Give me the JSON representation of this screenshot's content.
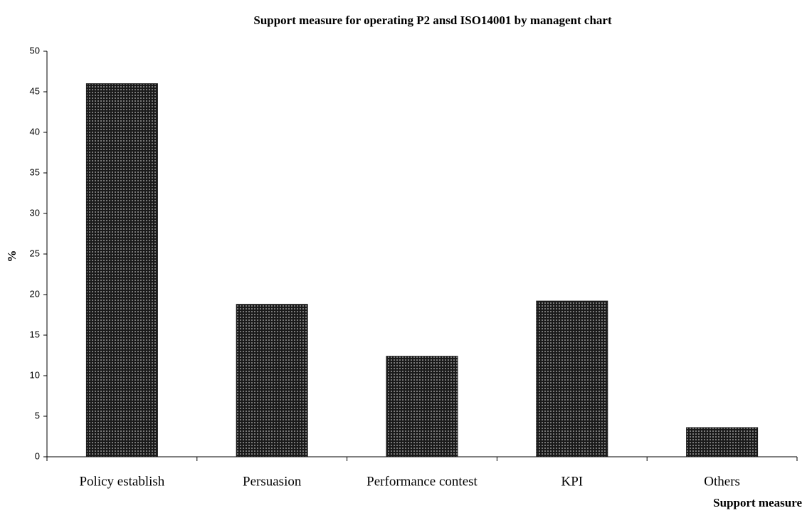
{
  "chart_data": {
    "type": "bar",
    "title": "Support measure for operating P2 ansd ISO14001 by managent chart",
    "x_label": "Support measure",
    "y_label": "%",
    "categories": [
      "Policy establish",
      "Persuasion",
      "Performance contest",
      "KPI",
      "Others"
    ],
    "values": [
      46,
      18.8,
      12.4,
      19.2,
      3.6
    ],
    "color": "#1a1a1a",
    "ylim": [
      0,
      50
    ],
    "yticks": [
      0,
      5,
      10,
      15,
      20,
      25,
      30,
      35,
      40,
      45,
      50
    ],
    "grid": false
  }
}
